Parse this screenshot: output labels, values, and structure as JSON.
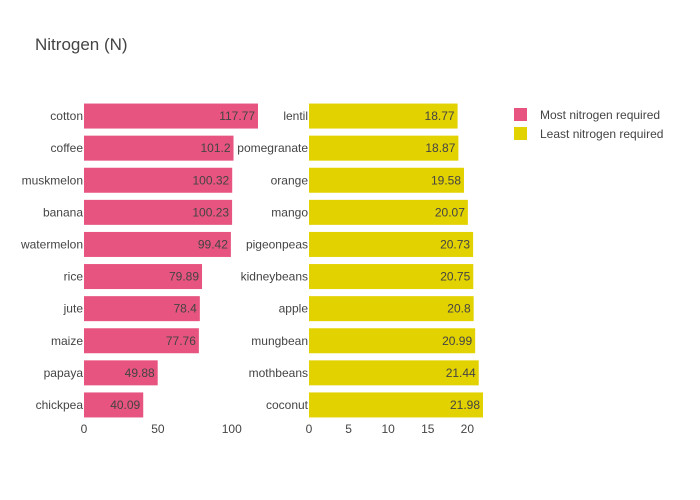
{
  "chart_data": {
    "title": "Nitrogen (N)",
    "legend_position": "top-right",
    "grid": false,
    "panels": [
      {
        "type": "bar",
        "orientation": "horizontal",
        "series_name": "Most nitrogen required",
        "color": "#e75480",
        "categories": [
          "cotton",
          "coffee",
          "muskmelon",
          "banana",
          "watermelon",
          "rice",
          "jute",
          "maize",
          "papaya",
          "chickpea"
        ],
        "values": [
          117.77,
          101.2,
          100.32,
          100.23,
          99.42,
          79.89,
          78.4,
          77.76,
          49.88,
          40.09
        ],
        "value_labels": [
          "117.77",
          "101.2",
          "100.32",
          "100.23",
          "99.42",
          "79.89",
          "78.4",
          "77.76",
          "49.88",
          "40.09"
        ],
        "xticks": [
          0,
          50,
          100
        ],
        "xlim": [
          0,
          117.77
        ]
      },
      {
        "type": "bar",
        "orientation": "horizontal",
        "series_name": "Least nitrogen required",
        "color": "#e2d200",
        "categories": [
          "lentil",
          "pomegranate",
          "orange",
          "mango",
          "pigeonpeas",
          "kidneybeans",
          "apple",
          "mungbean",
          "mothbeans",
          "coconut"
        ],
        "values": [
          18.77,
          18.87,
          19.58,
          20.07,
          20.73,
          20.75,
          20.8,
          20.99,
          21.44,
          21.98
        ],
        "value_labels": [
          "18.77",
          "18.87",
          "19.58",
          "20.07",
          "20.73",
          "20.75",
          "20.8",
          "20.99",
          "21.44",
          "21.98"
        ],
        "xticks": [
          0,
          5,
          10,
          15,
          20
        ],
        "xlim": [
          0,
          21.98
        ]
      }
    ]
  }
}
